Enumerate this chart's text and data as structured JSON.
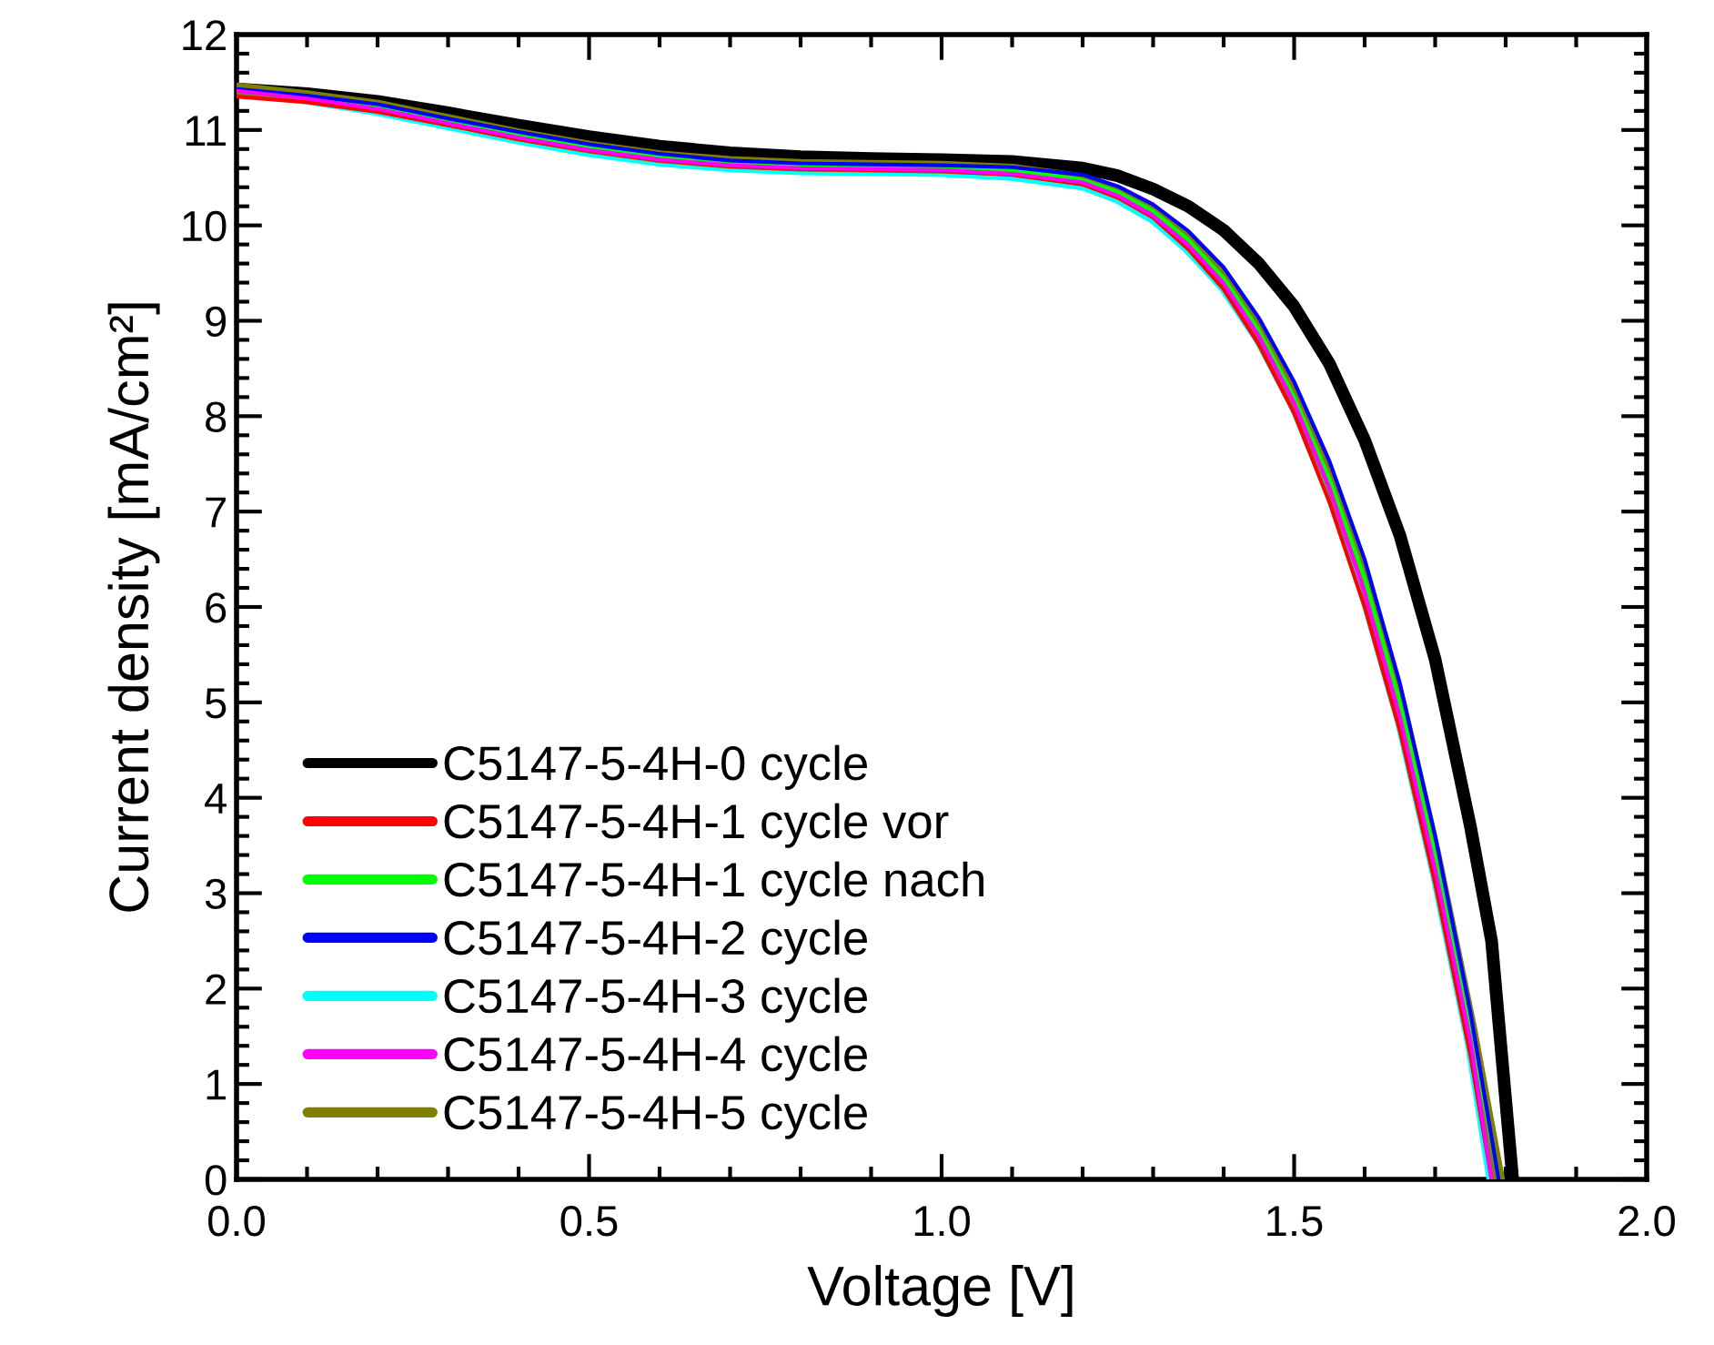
{
  "chart_data": {
    "type": "line",
    "xlabel": "Voltage [V]",
    "ylabel": "Current density [mA/cm²]",
    "xlim": [
      0,
      2.0
    ],
    "ylim": [
      0,
      12
    ],
    "xticks": [
      {
        "value": 0,
        "label": "0.0"
      },
      0.5,
      {
        "value": 1,
        "label": "1.0"
      },
      1.5,
      {
        "value": 2,
        "label": "2.0"
      }
    ],
    "yticks": [
      0,
      1,
      2,
      3,
      4,
      5,
      6,
      7,
      8,
      9,
      10,
      11,
      12
    ],
    "grid": false,
    "legend": "lower left",
    "marker": "none",
    "line_style": "solid",
    "x": [
      0,
      0.1,
      0.2,
      0.3,
      0.4,
      0.5,
      0.6,
      0.7,
      0.8,
      0.9,
      1.0,
      1.1,
      1.2,
      1.25,
      1.3,
      1.35,
      1.4,
      1.45,
      1.5,
      1.55,
      1.6,
      1.65,
      1.7,
      1.75,
      1.79
    ],
    "series": [
      {
        "name": "C5147-5-4H-0 cycle",
        "color": "#000000",
        "x": [
          0,
          0.1,
          0.2,
          0.3,
          0.4,
          0.5,
          0.6,
          0.7,
          0.8,
          0.9,
          1.0,
          1.1,
          1.2,
          1.25,
          1.3,
          1.35,
          1.4,
          1.45,
          1.5,
          1.55,
          1.6,
          1.65,
          1.7,
          1.75,
          1.78,
          1.81
        ],
        "values": [
          11.43,
          11.38,
          11.3,
          11.18,
          11.05,
          10.93,
          10.83,
          10.76,
          10.72,
          10.7,
          10.69,
          10.67,
          10.6,
          10.52,
          10.38,
          10.2,
          9.95,
          9.6,
          9.15,
          8.55,
          7.75,
          6.75,
          5.45,
          3.7,
          2.5,
          0
        ]
      },
      {
        "name": "C5147-5-4H-1 cycle vor",
        "color": "#ff0000",
        "x": [
          0,
          0.1,
          0.2,
          0.3,
          0.4,
          0.5,
          0.6,
          0.7,
          0.8,
          0.9,
          1.0,
          1.1,
          1.2,
          1.25,
          1.3,
          1.35,
          1.4,
          1.45,
          1.5,
          1.55,
          1.6,
          1.65,
          1.7,
          1.75,
          1.78
        ],
        "values": [
          11.35,
          11.29,
          11.19,
          11.05,
          10.9,
          10.78,
          10.68,
          10.62,
          10.59,
          10.58,
          10.57,
          10.53,
          10.43,
          10.29,
          10.08,
          9.75,
          9.33,
          8.75,
          8.03,
          7.1,
          6.0,
          4.7,
          3.1,
          1.3,
          0
        ]
      },
      {
        "name": "C5147-5-4H-1 cycle nach",
        "color": "#00ff00",
        "values": [
          11.43,
          11.35,
          11.25,
          11.1,
          10.95,
          10.82,
          10.72,
          10.66,
          10.63,
          10.62,
          10.61,
          10.58,
          10.48,
          10.35,
          10.15,
          9.85,
          9.45,
          8.9,
          8.2,
          7.35,
          6.3,
          5.0,
          3.4,
          1.6,
          0
        ]
      },
      {
        "name": "C5147-5-4H-2 cycle",
        "color": "#0000ff",
        "values": [
          11.43,
          11.36,
          11.27,
          11.12,
          10.98,
          10.85,
          10.75,
          10.68,
          10.65,
          10.64,
          10.63,
          10.61,
          10.53,
          10.41,
          10.22,
          9.94,
          9.56,
          9.03,
          8.36,
          7.53,
          6.5,
          5.2,
          3.6,
          1.75,
          0
        ]
      },
      {
        "name": "C5147-5-4H-3 cycle",
        "color": "#00ffff",
        "x": [
          0,
          0.1,
          0.2,
          0.3,
          0.4,
          0.5,
          0.6,
          0.7,
          0.8,
          0.9,
          1.0,
          1.1,
          1.2,
          1.25,
          1.3,
          1.35,
          1.4,
          1.45,
          1.5,
          1.55,
          1.6,
          1.65,
          1.7,
          1.75,
          1.78
        ],
        "values": [
          11.4,
          11.32,
          11.2,
          11.05,
          10.9,
          10.77,
          10.67,
          10.61,
          10.58,
          10.57,
          10.56,
          10.52,
          10.42,
          10.28,
          10.07,
          9.75,
          9.35,
          8.8,
          8.1,
          7.2,
          6.1,
          4.8,
          3.2,
          1.4,
          0
        ]
      },
      {
        "name": "C5147-5-4H-4 cycle",
        "color": "#ff00ff",
        "x": [
          0,
          0.1,
          0.2,
          0.3,
          0.4,
          0.5,
          0.6,
          0.7,
          0.8,
          0.9,
          1.0,
          1.1,
          1.2,
          1.25,
          1.3,
          1.35,
          1.4,
          1.45,
          1.5,
          1.55,
          1.6,
          1.65,
          1.7,
          1.75,
          1.78
        ],
        "values": [
          11.41,
          11.33,
          11.22,
          11.07,
          10.92,
          10.79,
          10.69,
          10.63,
          10.6,
          10.59,
          10.58,
          10.54,
          10.45,
          10.31,
          10.1,
          9.79,
          9.39,
          8.84,
          8.14,
          7.25,
          6.15,
          4.85,
          3.25,
          1.45,
          0
        ]
      },
      {
        "name": "C5147-5-4H-5 cycle",
        "color": "#808000",
        "values": [
          11.43,
          11.35,
          11.25,
          11.1,
          10.95,
          10.82,
          10.72,
          10.66,
          10.63,
          10.62,
          10.61,
          10.58,
          10.48,
          10.35,
          10.15,
          9.85,
          9.45,
          8.9,
          8.2,
          7.35,
          6.3,
          5.0,
          3.4,
          1.6,
          0
        ]
      }
    ]
  }
}
